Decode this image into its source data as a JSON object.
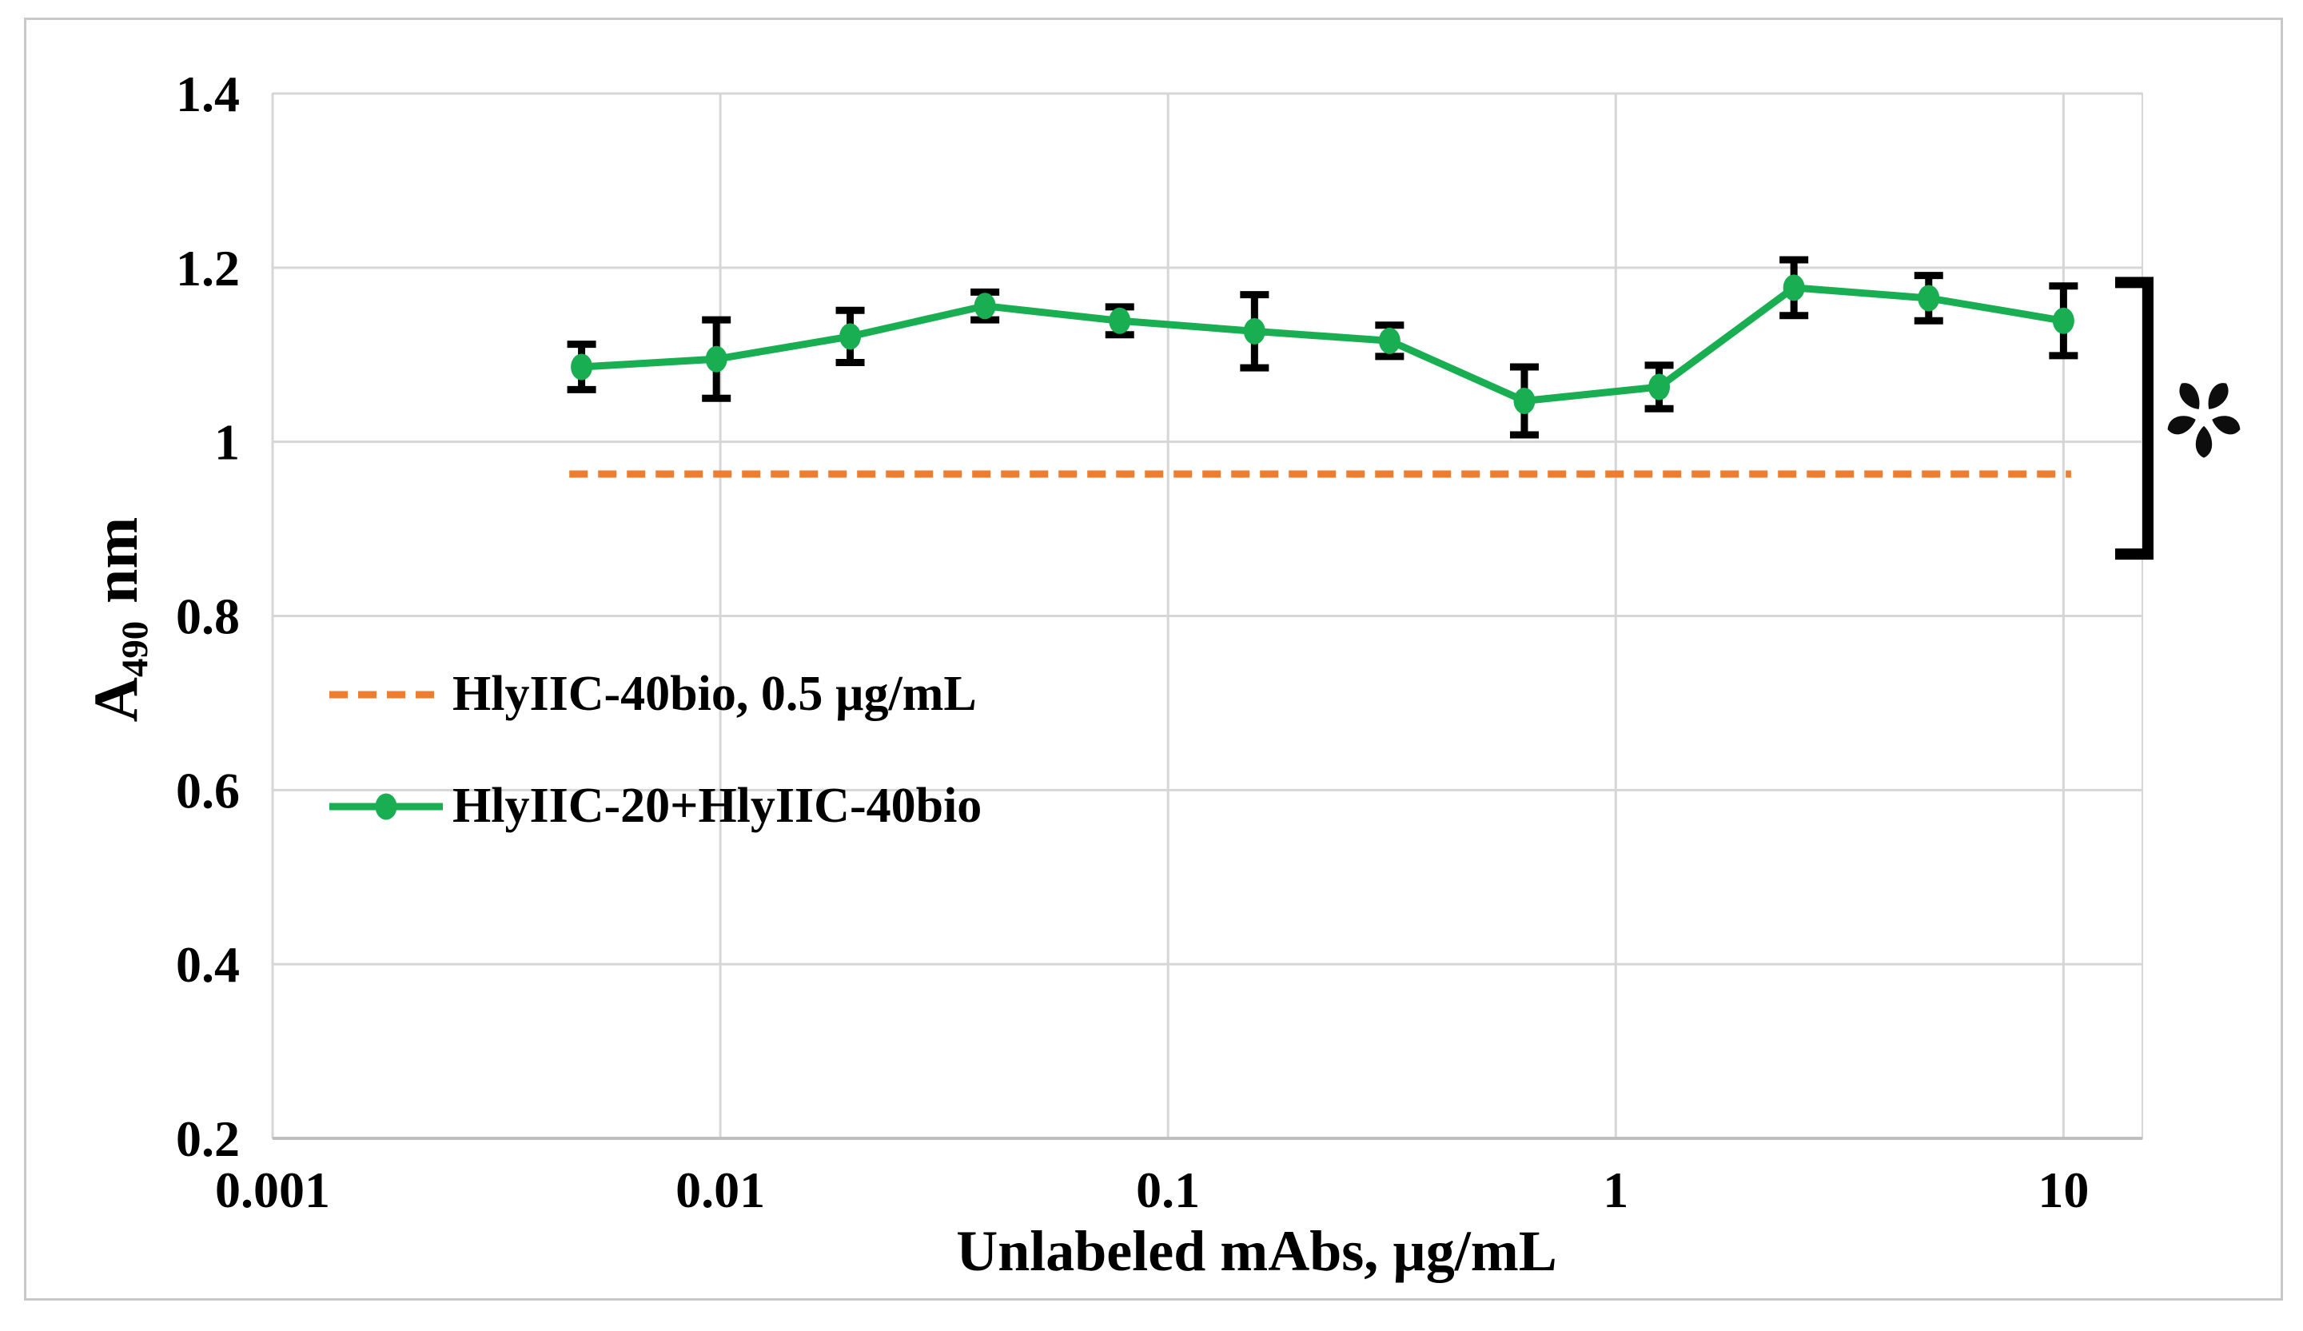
{
  "figure": {
    "background": "#ffffff",
    "border_color": "#c8c8c8"
  },
  "chart_data": {
    "type": "line",
    "title": "",
    "xlabel": "Unlabeled mAbs, µg/mL",
    "ylabel": "A490 nm",
    "ylabel_parts": {
      "main": "A",
      "sub": "490",
      "unit": "nm"
    },
    "x_scale": "log",
    "xlim": [
      0.001,
      15
    ],
    "ylim": [
      0.2,
      1.4
    ],
    "x_ticks": [
      0.001,
      0.01,
      0.1,
      1,
      10
    ],
    "x_tick_labels": [
      "0.001",
      "0.01",
      "0.1",
      "1",
      "10"
    ],
    "y_ticks": [
      0.2,
      0.4,
      0.6,
      0.8,
      1,
      1.2,
      1.4
    ],
    "y_tick_labels": [
      "0.2",
      "0.4",
      "0.6",
      "0.8",
      "1",
      "1.2",
      "1.4"
    ],
    "grid": true,
    "grid_color": "#d6d6d6",
    "axis_color": "#bfbfbf",
    "series": [
      {
        "name": "HlyIIC-40bio, 0.5 µg/mL",
        "style": "hline-dashed",
        "color": "#ED7D31",
        "y": 0.963,
        "x_start": 0.0046,
        "x_end": 10.4
      },
      {
        "name": "HlyIIC-20+HlyIIC-40bio",
        "style": "line-markers-errorbars",
        "color": "#19AE52",
        "error_color": "#000000",
        "x": [
          0.0049,
          0.0098,
          0.0195,
          0.039,
          0.078,
          0.156,
          0.3125,
          0.625,
          1.25,
          2.5,
          5,
          10
        ],
        "y": [
          1.086,
          1.095,
          1.121,
          1.156,
          1.139,
          1.127,
          1.116,
          1.047,
          1.063,
          1.177,
          1.165,
          1.139
        ],
        "yerr": [
          0.026,
          0.045,
          0.03,
          0.016,
          0.016,
          0.042,
          0.018,
          0.039,
          0.025,
          0.032,
          0.026,
          0.04
        ]
      }
    ],
    "legend": {
      "position": "inside-left",
      "items": [
        {
          "label": "HlyIIC-40bio, 0.5 µg/mL",
          "swatch": "dashed-line",
          "color": "#ED7D31"
        },
        {
          "label": "HlyIIC-20+HlyIIC-40bio",
          "swatch": "line-marker",
          "color": "#19AE52"
        }
      ]
    },
    "annotations": {
      "bracket": {
        "y_top": 1.183,
        "y_bottom": 0.871,
        "color": "#000000"
      },
      "asterisk": {
        "symbol": "*",
        "color": "#0d0d0d"
      }
    }
  }
}
